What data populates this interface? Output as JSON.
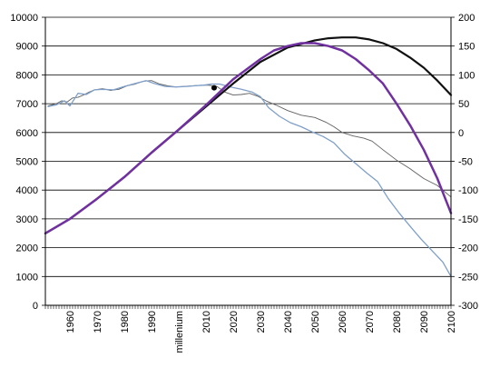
{
  "chart_data": {
    "type": "line",
    "grid": true,
    "legend": "none",
    "x_range": [
      1951,
      2100
    ],
    "x_ticks": [
      1960,
      1970,
      1980,
      1990,
      2000,
      2010,
      2020,
      2030,
      2040,
      2050,
      2060,
      2070,
      2080,
      2090,
      2100
    ],
    "x_tick_labels": [
      "1960",
      "1970",
      "1980",
      "1990",
      "millenium",
      "2010",
      "2020",
      "2030",
      "2040",
      "2050",
      "2060",
      "2070",
      "2080",
      "2090",
      "2100"
    ],
    "y_left": {
      "range": [
        0,
        10000
      ],
      "ticks": [
        0,
        1000,
        2000,
        3000,
        4000,
        5000,
        6000,
        7000,
        8000,
        9000,
        10000
      ],
      "tick_labels": [
        "0",
        "1000",
        "2000",
        "3000",
        "4000",
        "5000",
        "6000",
        "7000",
        "8000",
        "9000",
        "10000"
      ]
    },
    "y_right": {
      "range": [
        -300,
        200
      ],
      "ticks": [
        -300,
        -250,
        -200,
        -150,
        -100,
        -50,
        0,
        50,
        100,
        150,
        200
      ],
      "tick_labels": [
        "-300",
        "-250",
        "-200",
        "-150",
        "-100",
        "-50",
        "0",
        "50",
        "100",
        "150",
        "200"
      ]
    },
    "series": [
      {
        "axis": "left",
        "color": "#111111",
        "width": 2.2,
        "points": [
          [
            1951,
            2500
          ],
          [
            1960,
            3000
          ],
          [
            1970,
            3700
          ],
          [
            1980,
            4450
          ],
          [
            1990,
            5300
          ],
          [
            2000,
            6100
          ],
          [
            2010,
            6900
          ],
          [
            2020,
            7700
          ],
          [
            2030,
            8450
          ],
          [
            2040,
            8950
          ],
          [
            2050,
            9200
          ],
          [
            2055,
            9270
          ],
          [
            2060,
            9300
          ],
          [
            2065,
            9300
          ],
          [
            2070,
            9230
          ],
          [
            2075,
            9100
          ],
          [
            2080,
            8900
          ],
          [
            2085,
            8600
          ],
          [
            2090,
            8250
          ],
          [
            2095,
            7800
          ],
          [
            2100,
            7300
          ]
        ]
      },
      {
        "axis": "left",
        "color": "#7030a0",
        "width": 2.5,
        "points": [
          [
            1951,
            2500
          ],
          [
            1960,
            3000
          ],
          [
            1970,
            3700
          ],
          [
            1980,
            4450
          ],
          [
            1990,
            5300
          ],
          [
            2000,
            6100
          ],
          [
            2010,
            6950
          ],
          [
            2020,
            7850
          ],
          [
            2030,
            8550
          ],
          [
            2035,
            8850
          ],
          [
            2040,
            9000
          ],
          [
            2045,
            9100
          ],
          [
            2050,
            9100
          ],
          [
            2055,
            9000
          ],
          [
            2060,
            8850
          ],
          [
            2065,
            8550
          ],
          [
            2070,
            8150
          ],
          [
            2075,
            7700
          ],
          [
            2080,
            7000
          ],
          [
            2085,
            6250
          ],
          [
            2090,
            5400
          ],
          [
            2095,
            4400
          ],
          [
            2100,
            3200
          ]
        ]
      },
      {
        "axis": "right",
        "color": "#606060",
        "width": 0.9,
        "points": [
          [
            1952,
            46
          ],
          [
            1955,
            50
          ],
          [
            1957,
            55
          ],
          [
            1959,
            53
          ],
          [
            1961,
            60
          ],
          [
            1963,
            61
          ],
          [
            1965,
            65
          ],
          [
            1967,
            70
          ],
          [
            1969,
            74
          ],
          [
            1972,
            76
          ],
          [
            1975,
            73
          ],
          [
            1978,
            75
          ],
          [
            1981,
            81
          ],
          [
            1984,
            84
          ],
          [
            1987,
            89
          ],
          [
            1990,
            90
          ],
          [
            1993,
            84
          ],
          [
            1996,
            81
          ],
          [
            1999,
            79
          ],
          [
            2002,
            80
          ],
          [
            2005,
            81
          ],
          [
            2008,
            82
          ],
          [
            2011,
            82
          ],
          [
            2014,
            80
          ],
          [
            2017,
            70
          ],
          [
            2020,
            65
          ],
          [
            2023,
            66
          ],
          [
            2026,
            68
          ],
          [
            2029,
            63
          ],
          [
            2032,
            55
          ],
          [
            2036,
            47
          ],
          [
            2040,
            38
          ],
          [
            2045,
            30
          ],
          [
            2050,
            26
          ],
          [
            2054,
            18
          ],
          [
            2057,
            10
          ],
          [
            2060,
            0
          ],
          [
            2064,
            -6
          ],
          [
            2068,
            -10
          ],
          [
            2071,
            -15
          ],
          [
            2075,
            -30
          ],
          [
            2080,
            -48
          ],
          [
            2085,
            -63
          ],
          [
            2090,
            -80
          ],
          [
            2095,
            -92
          ],
          [
            2100,
            -112
          ]
        ]
      },
      {
        "axis": "right",
        "color": "#7f9fc8",
        "width": 1.3,
        "points": [
          [
            1952,
            45
          ],
          [
            1955,
            48
          ],
          [
            1958,
            55
          ],
          [
            1960,
            46
          ],
          [
            1963,
            68
          ],
          [
            1966,
            66
          ],
          [
            1969,
            74
          ],
          [
            1972,
            75
          ],
          [
            1976,
            74
          ],
          [
            1980,
            80
          ],
          [
            1984,
            85
          ],
          [
            1988,
            90
          ],
          [
            1991,
            85
          ],
          [
            1995,
            80
          ],
          [
            1999,
            79
          ],
          [
            2003,
            80
          ],
          [
            2006,
            81
          ],
          [
            2009,
            82
          ],
          [
            2012,
            84
          ],
          [
            2015,
            84
          ],
          [
            2019,
            79
          ],
          [
            2023,
            75
          ],
          [
            2027,
            70
          ],
          [
            2030,
            62
          ],
          [
            2033,
            43
          ],
          [
            2037,
            28
          ],
          [
            2041,
            17
          ],
          [
            2045,
            10
          ],
          [
            2049,
            1
          ],
          [
            2053,
            -7
          ],
          [
            2057,
            -18
          ],
          [
            2061,
            -38
          ],
          [
            2065,
            -54
          ],
          [
            2069,
            -70
          ],
          [
            2073,
            -85
          ],
          [
            2077,
            -115
          ],
          [
            2081,
            -140
          ],
          [
            2085,
            -163
          ],
          [
            2089,
            -185
          ],
          [
            2093,
            -205
          ],
          [
            2097,
            -225
          ],
          [
            2100,
            -250
          ]
        ]
      }
    ],
    "marker": {
      "x": 2013,
      "y": 7550,
      "axis": "left",
      "color": "#000000"
    }
  }
}
